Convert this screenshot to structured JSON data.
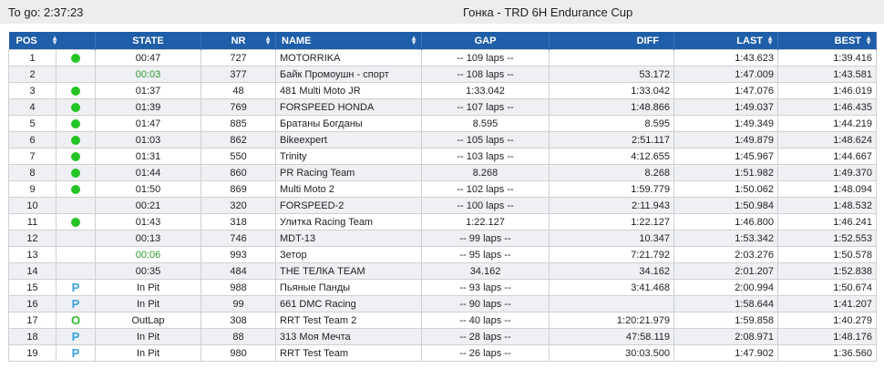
{
  "header": {
    "togo": "To go: 2:37:23",
    "title": "Гонка - TRD 6H Endurance Cup"
  },
  "columns": {
    "pos": "POS",
    "state": "STATE",
    "nr": "NR",
    "name": "NAME",
    "gap": "GAP",
    "diff": "DIFF",
    "last": "LAST",
    "best": "BEST"
  },
  "colors": {
    "header_bg": "#1f5ea8",
    "status_green": "#25c425",
    "pit_blue": "#3aa0e0",
    "elapsed_green": "#2c9a2c"
  },
  "rows": [
    {
      "pos": "1",
      "status": "green-dot",
      "status_text": "",
      "state": "00:47",
      "state_color": "",
      "nr": "727",
      "name": "MOTORRIKA",
      "gap": "-- 109 laps --",
      "diff": "",
      "last": "1:43.623",
      "best": "1:39.416"
    },
    {
      "pos": "2",
      "status": "none",
      "status_text": "",
      "state": "00:03",
      "state_color": "green",
      "nr": "377",
      "name": "Байк Промоушн - спорт",
      "gap": "-- 108 laps --",
      "diff": "53.172",
      "last": "1:47.009",
      "best": "1:43.581"
    },
    {
      "pos": "3",
      "status": "green-dot",
      "status_text": "",
      "state": "01:37",
      "state_color": "",
      "nr": "48",
      "name": "481 Multi Moto JR",
      "gap": "1:33.042",
      "diff": "1:33.042",
      "last": "1:47.076",
      "best": "1:46.019"
    },
    {
      "pos": "4",
      "status": "green-dot",
      "status_text": "",
      "state": "01:39",
      "state_color": "",
      "nr": "769",
      "name": "FORSPEED HONDA",
      "gap": "-- 107 laps --",
      "diff": "1:48.866",
      "last": "1:49.037",
      "best": "1:46.435"
    },
    {
      "pos": "5",
      "status": "green-dot",
      "status_text": "",
      "state": "01:47",
      "state_color": "",
      "nr": "885",
      "name": "Братаны Богданы",
      "gap": "8.595",
      "diff": "8.595",
      "last": "1:49.349",
      "best": "1:44.219"
    },
    {
      "pos": "6",
      "status": "green-dot",
      "status_text": "",
      "state": "01:03",
      "state_color": "",
      "nr": "862",
      "name": "Bikeexpert",
      "gap": "-- 105 laps --",
      "diff": "2:51.117",
      "last": "1:49.879",
      "best": "1:48.624"
    },
    {
      "pos": "7",
      "status": "green-dot",
      "status_text": "",
      "state": "01:31",
      "state_color": "",
      "nr": "550",
      "name": "Trinity",
      "gap": "-- 103 laps --",
      "diff": "4:12.655",
      "last": "1:45.967",
      "best": "1:44.667"
    },
    {
      "pos": "8",
      "status": "green-dot",
      "status_text": "",
      "state": "01:44",
      "state_color": "",
      "nr": "860",
      "name": "PR Racing Team",
      "gap": "8.268",
      "diff": "8.268",
      "last": "1:51.982",
      "best": "1:49.370"
    },
    {
      "pos": "9",
      "status": "green-dot",
      "status_text": "",
      "state": "01:50",
      "state_color": "",
      "nr": "869",
      "name": "Multi Moto 2",
      "gap": "-- 102 laps --",
      "diff": "1:59.779",
      "last": "1:50.062",
      "best": "1:48.094"
    },
    {
      "pos": "10",
      "status": "none",
      "status_text": "",
      "state": "00:21",
      "state_color": "",
      "nr": "320",
      "name": "FORSPEED-2",
      "gap": "-- 100 laps --",
      "diff": "2:11.943",
      "last": "1:50.984",
      "best": "1:48.532"
    },
    {
      "pos": "11",
      "status": "green-dot",
      "status_text": "",
      "state": "01:43",
      "state_color": "",
      "nr": "318",
      "name": "Улитка Racing Team",
      "gap": "1:22.127",
      "diff": "1:22.127",
      "last": "1:46.800",
      "best": "1:46.241"
    },
    {
      "pos": "12",
      "status": "none",
      "status_text": "",
      "state": "00:13",
      "state_color": "",
      "nr": "746",
      "name": "MDT-13",
      "gap": "-- 99 laps --",
      "diff": "10.347",
      "last": "1:53.342",
      "best": "1:52.553"
    },
    {
      "pos": "13",
      "status": "none",
      "status_text": "",
      "state": "00:06",
      "state_color": "green",
      "nr": "993",
      "name": "Зетор",
      "gap": "-- 95 laps --",
      "diff": "7:21.792",
      "last": "2:03.276",
      "best": "1:50.578"
    },
    {
      "pos": "14",
      "status": "none",
      "status_text": "",
      "state": "00:35",
      "state_color": "",
      "nr": "484",
      "name": "THE ТЕЛКА TEAM",
      "gap": "34.162",
      "diff": "34.162",
      "last": "2:01.207",
      "best": "1:52.838"
    },
    {
      "pos": "15",
      "status": "pit",
      "status_text": "P",
      "state": "In Pit",
      "state_color": "",
      "nr": "988",
      "name": "Пьяные Панды",
      "gap": "-- 93 laps --",
      "diff": "3:41.468",
      "last": "2:00.994",
      "best": "1:50.674"
    },
    {
      "pos": "16",
      "status": "pit",
      "status_text": "P",
      "state": "In Pit",
      "state_color": "",
      "nr": "99",
      "name": "661 DMC Racing",
      "gap": "-- 90 laps --",
      "diff": "",
      "last": "1:58.644",
      "best": "1:41.207"
    },
    {
      "pos": "17",
      "status": "outlap",
      "status_text": "O",
      "state": "OutLap",
      "state_color": "",
      "nr": "308",
      "name": "RRT Test Team 2",
      "gap": "-- 40 laps --",
      "diff": "1:20:21.979",
      "last": "1:59.858",
      "best": "1:40.279"
    },
    {
      "pos": "18",
      "status": "pit",
      "status_text": "P",
      "state": "In Pit",
      "state_color": "",
      "nr": "88",
      "name": "313 Моя Мечта",
      "gap": "-- 28 laps --",
      "diff": "47:58.119",
      "last": "2:08.971",
      "best": "1:48.176"
    },
    {
      "pos": "19",
      "status": "pit",
      "status_text": "P",
      "state": "In Pit",
      "state_color": "",
      "nr": "980",
      "name": "RRT Test Team",
      "gap": "-- 26 laps --",
      "diff": "30:03.500",
      "last": "1:47.902",
      "best": "1:36.560"
    }
  ]
}
